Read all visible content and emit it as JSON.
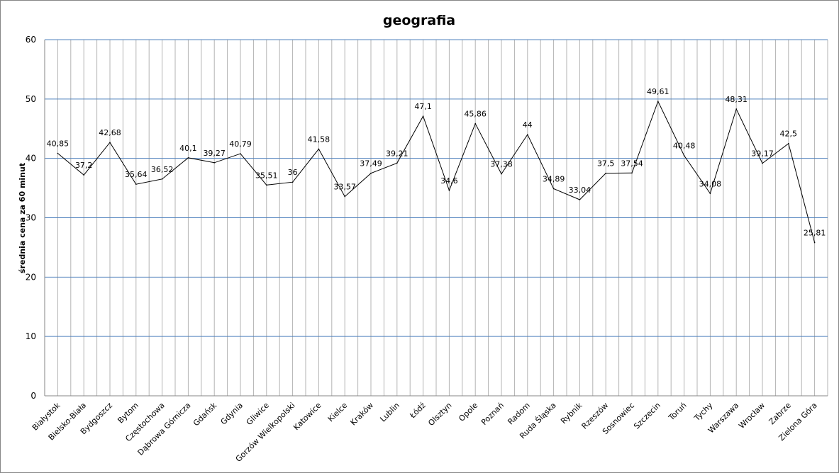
{
  "chart_data": {
    "type": "line",
    "title": "geografia",
    "xlabel": "",
    "ylabel": "średnia cena za 60 minut",
    "ylim": [
      0,
      60
    ],
    "yticks": [
      0,
      10,
      20,
      30,
      40,
      50,
      60
    ],
    "grid": true,
    "legend": "none",
    "categories": [
      "Białystok",
      "Bielsko-Biała",
      "Bydgoszcz",
      "Bytom",
      "Częstochowa",
      "Dąbrowa Gómicza",
      "Gdańsk",
      "Gdynia",
      "Gliwice",
      "Gorzów Wielkopolski",
      "Katowice",
      "Kielce",
      "Kraków",
      "Lublin",
      "Łódź",
      "Olsztyn",
      "Opole",
      "Poznań",
      "Radom",
      "Ruda Śląska",
      "Rybnik",
      "Rzeszów",
      "Sosnowiec",
      "Szczecin",
      "Toruń",
      "Tychy",
      "Warszawa",
      "Wrocław",
      "Zabrze",
      "Zielona Góra"
    ],
    "values": [
      40.85,
      37.2,
      42.68,
      35.64,
      36.52,
      40.1,
      39.27,
      40.79,
      35.51,
      36,
      41.58,
      33.57,
      37.49,
      39.21,
      47.1,
      34.6,
      45.86,
      37.38,
      44,
      34.89,
      33.04,
      37.5,
      37.54,
      49.61,
      40.48,
      34.08,
      48.31,
      39.17,
      42.5,
      25.81
    ],
    "data_labels": [
      "40,85",
      "37,2",
      "42,68",
      "35,64",
      "36,52",
      "40,1",
      "39,27",
      "40,79",
      "35,51",
      "36",
      "41,58",
      "33,57",
      "37,49",
      "39,21",
      "47,1",
      "34,6",
      "45,86",
      "37,38",
      "44",
      "34,89",
      "33,04",
      "37,5",
      "37,54",
      "49,61",
      "40,48",
      "34,08",
      "48,31",
      "39,17",
      "42,5",
      "25,81"
    ],
    "colors": {
      "line": "#000000",
      "hgrid": "#4f81bd",
      "vgrid": "#b3b3b3"
    }
  }
}
